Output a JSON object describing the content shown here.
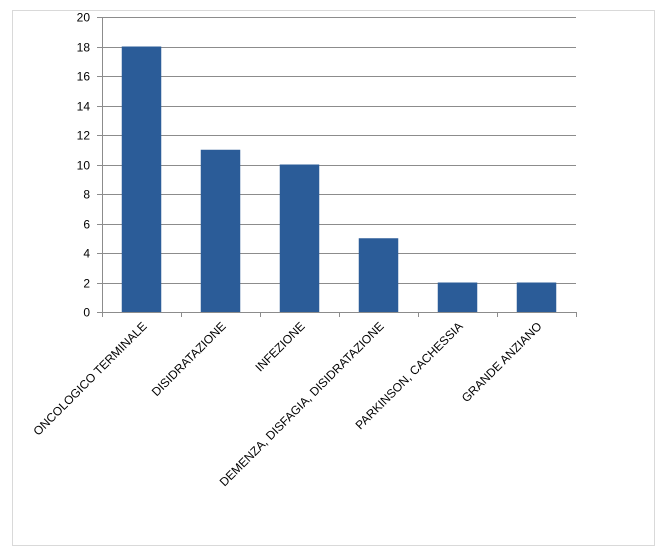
{
  "chart_data": {
    "type": "bar",
    "categories": [
      "ONCOLOGICO TERMINALE",
      "DISIDRATAZIONE",
      "INFEZIONE",
      "DEMENZA, DISFAGIA, DISIDRATAZIONE",
      "PARKINSON, CACHESSIA",
      "GRANDE ANZIANO"
    ],
    "values": [
      18,
      11,
      10,
      5,
      2,
      2
    ],
    "ylim": [
      0,
      20
    ],
    "yticks": [
      0,
      2,
      4,
      6,
      8,
      10,
      12,
      14,
      16,
      18,
      20
    ],
    "title": "",
    "xlabel": "",
    "ylabel": "",
    "grid": true,
    "legend": "none",
    "bar_color": "#2b5c98",
    "grid_color": "#8c8c8c"
  }
}
